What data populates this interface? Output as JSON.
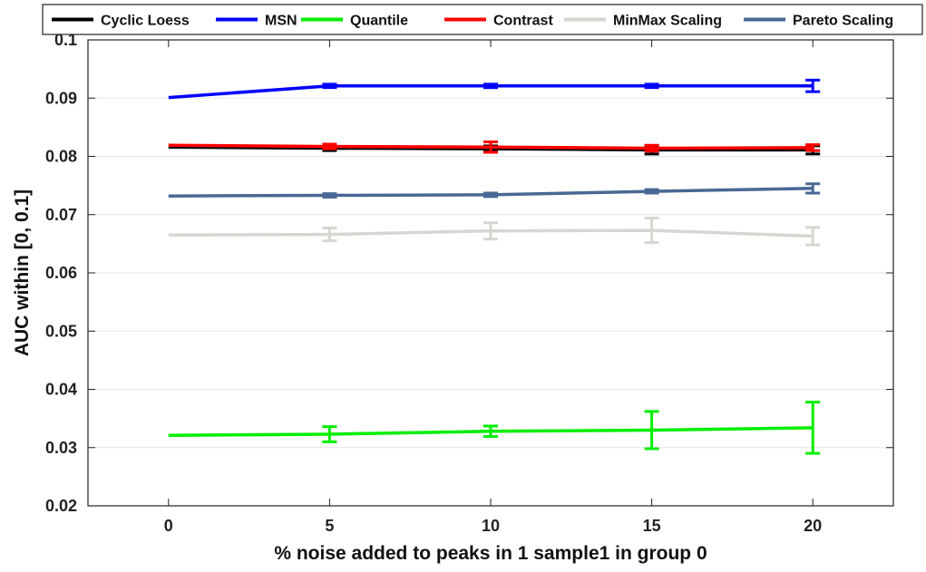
{
  "chart_data": {
    "type": "line",
    "xlabel": "% noise added to peaks in 1 sample1 in group 0",
    "ylabel": "AUC within [0, 0.1]",
    "x": [
      0,
      5,
      10,
      15,
      20
    ],
    "xticks": [
      0,
      5,
      10,
      15,
      20
    ],
    "xlim": [
      -2.5,
      22.5
    ],
    "ylim": [
      0.02,
      0.1
    ],
    "yticks": [
      0.02,
      0.03,
      0.04,
      0.05,
      0.06,
      0.07,
      0.08,
      0.09,
      0.1
    ],
    "ytick_labels": [
      "0.02",
      "0.03",
      "0.04",
      "0.05",
      "0.06",
      "0.07",
      "0.08",
      "0.09",
      "0.1"
    ],
    "grid": "horizontal",
    "legend_position": "top",
    "series": [
      {
        "name": "Cyclic Loess",
        "color": "#000000",
        "values": [
          0.0816,
          0.0814,
          0.0813,
          0.0811,
          0.0811
        ],
        "errors": [
          0,
          0.0004,
          0.0005,
          0.0007,
          0.0007
        ]
      },
      {
        "name": "MSN",
        "color": "#0000ff",
        "values": [
          0.0901,
          0.0921,
          0.0921,
          0.0921,
          0.0921
        ],
        "errors": [
          0,
          0.0003,
          0.0003,
          0.0003,
          0.001
        ]
      },
      {
        "name": "Quantile",
        "color": "#00ee00",
        "values": [
          0.0321,
          0.0323,
          0.0328,
          0.033,
          0.0334
        ],
        "errors": [
          0,
          0.0013,
          0.0009,
          0.0032,
          0.0044
        ]
      },
      {
        "name": "Contrast",
        "color": "#ff0000",
        "values": [
          0.0819,
          0.0817,
          0.0816,
          0.0814,
          0.0815
        ],
        "errors": [
          0,
          0.0004,
          0.0009,
          0.0005,
          0.0005
        ]
      },
      {
        "name": "MinMax Scaling",
        "color": "#d8d6d0",
        "values": [
          0.0665,
          0.0666,
          0.0672,
          0.0673,
          0.0663
        ],
        "errors": [
          0,
          0.0011,
          0.0014,
          0.0021,
          0.0015
        ]
      },
      {
        "name": "Pareto Scaling",
        "color": "#4a6894",
        "values": [
          0.0732,
          0.0733,
          0.0734,
          0.074,
          0.0745
        ],
        "errors": [
          0,
          0.0003,
          0.0003,
          0.0003,
          0.0008
        ]
      }
    ]
  }
}
